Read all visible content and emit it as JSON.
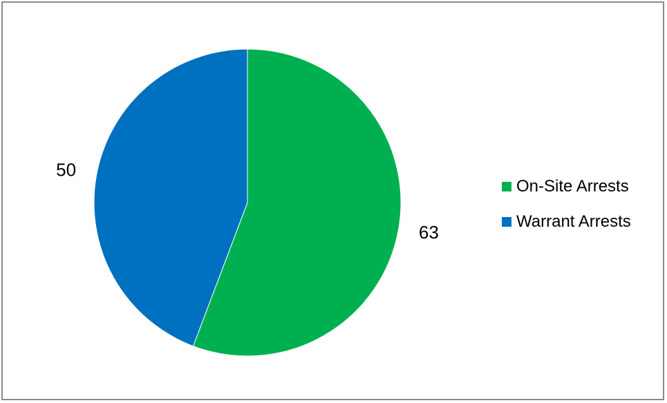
{
  "chart_data": {
    "type": "pie",
    "title": "",
    "categories": [
      "On-Site Arrests",
      "Warrant Arrests"
    ],
    "values": [
      63,
      50
    ],
    "colors": [
      "#00B050",
      "#0070C0"
    ],
    "data_labels": [
      "63",
      "50"
    ],
    "legend_position": "right",
    "start_angle": "12 o'clock",
    "direction": "clockwise"
  }
}
